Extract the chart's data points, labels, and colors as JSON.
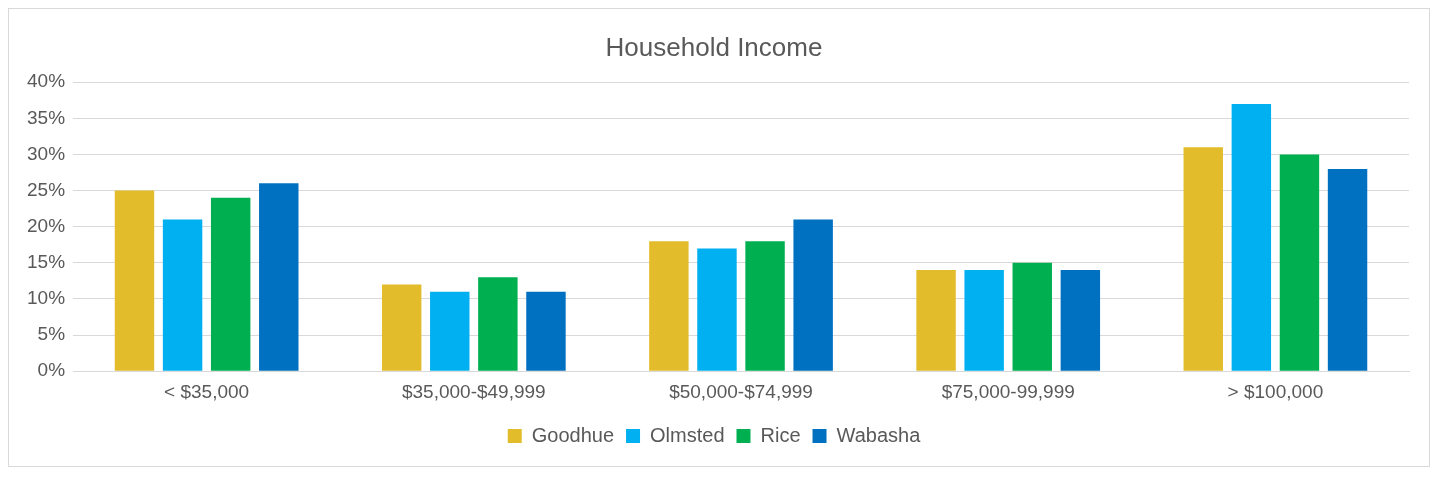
{
  "chart_data": {
    "type": "bar",
    "title": "Household Income",
    "categories": [
      "< $35,000",
      "$35,000-$49,999",
      "$50,000-$74,999",
      "$75,000-99,999",
      "> $100,000"
    ],
    "series": [
      {
        "name": "Goodhue",
        "color": "#e3bc2b",
        "values": [
          25,
          12,
          18,
          14,
          31
        ]
      },
      {
        "name": "Olmsted",
        "color": "#00b0f0",
        "values": [
          21,
          11,
          17,
          14,
          37
        ]
      },
      {
        "name": "Rice",
        "color": "#00b050",
        "values": [
          24,
          13,
          18,
          15,
          30
        ]
      },
      {
        "name": "Wabasha",
        "color": "#0070c0",
        "values": [
          26,
          11,
          21,
          14,
          28
        ]
      }
    ],
    "ylim": [
      0,
      40
    ],
    "yticks": [
      {
        "value": 0,
        "label": "0%"
      },
      {
        "value": 5,
        "label": "5%"
      },
      {
        "value": 10,
        "label": "10%"
      },
      {
        "value": 15,
        "label": "15%"
      },
      {
        "value": 20,
        "label": "20%"
      },
      {
        "value": 25,
        "label": "25%"
      },
      {
        "value": 30,
        "label": "30%"
      },
      {
        "value": 35,
        "label": "35%"
      },
      {
        "value": 40,
        "label": "40%"
      }
    ],
    "grid": "y",
    "legend": "bottom"
  }
}
